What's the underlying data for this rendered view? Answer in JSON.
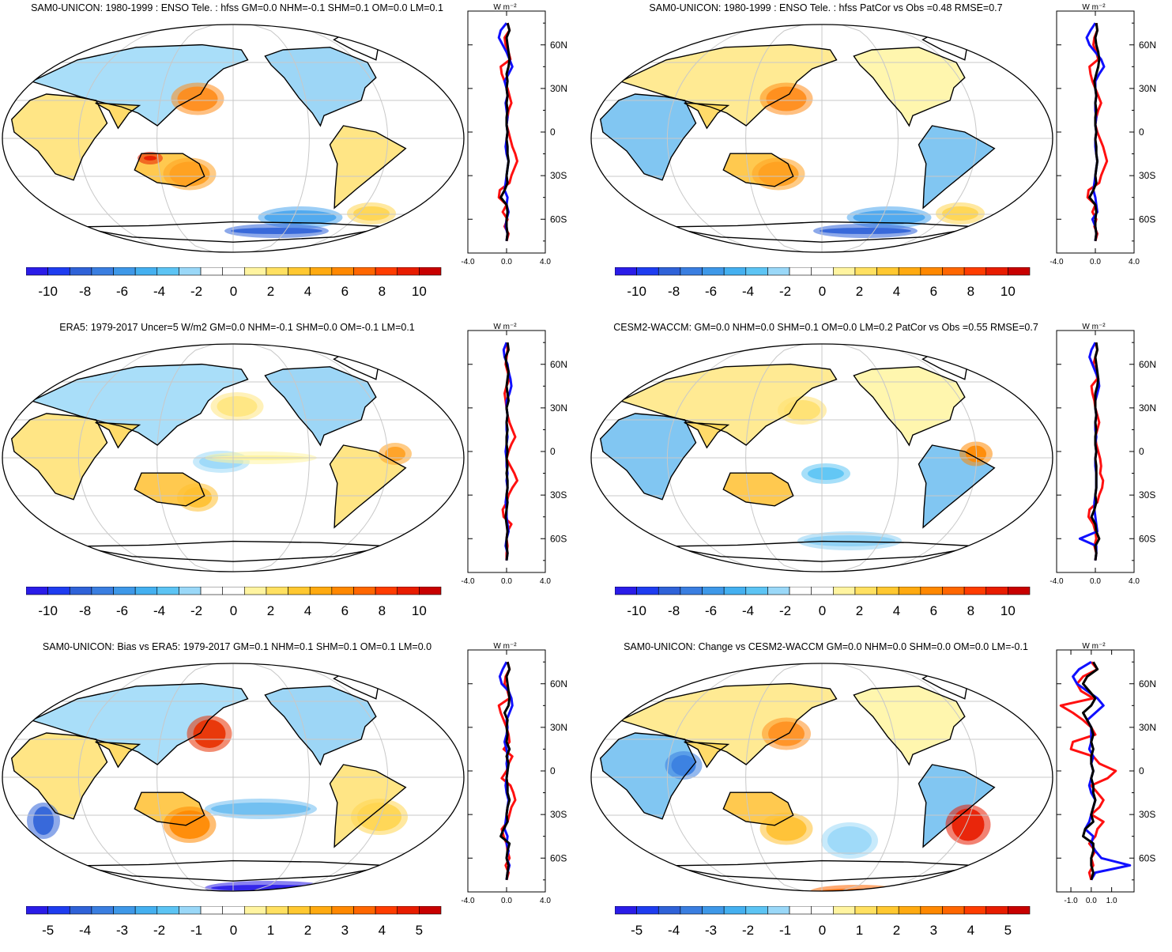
{
  "palette_enso": [
    "#2a1ce8",
    "#1e3cf0",
    "#2f62d8",
    "#3a7ee0",
    "#3e98e8",
    "#44b0f0",
    "#5cc4f4",
    "#9ad8f8",
    "#ffffff",
    "#ffffff",
    "#fff4a0",
    "#ffe060",
    "#ffc830",
    "#ffaa10",
    "#ff8800",
    "#ff6600",
    "#ff3c00",
    "#e81c00",
    "#c80000"
  ],
  "palette_bias": [
    "#2a1ce8",
    "#1e3cf0",
    "#2f62d8",
    "#3a7ee0",
    "#3e98e8",
    "#44b0f0",
    "#5cc4f4",
    "#9ad8f8",
    "#ffffff",
    "#ffffff",
    "#fff4a0",
    "#ffe060",
    "#ffc830",
    "#ffaa10",
    "#ff8800",
    "#ff6600",
    "#ff3c00",
    "#e81c00",
    "#c80000"
  ],
  "colors": {
    "red": "#ff1010",
    "blue": "#1010ff",
    "black": "#000000",
    "grid": "#c8c8c8"
  },
  "lat_labels": [
    "60N",
    "30N",
    "0",
    "30S",
    "60S"
  ],
  "panels": [
    {
      "id": "sam0-enso",
      "title": "SAM0-UNICON: 1980-1999 : ENSO Tele. : hfss GM=0.0 NHM=-0.1 SHM=0.1 OM=0.0 LM=0.1",
      "colorbar_labels": [
        "-10",
        "-8",
        "-6",
        "-4",
        "-2",
        "0",
        "2",
        "4",
        "6",
        "8",
        "10"
      ],
      "palette": "enso",
      "profile_unit": "W m⁻²",
      "profile_xticks": [
        "-4.0",
        "0.0",
        "4.0"
      ],
      "profile_xlim": [
        -4,
        4
      ],
      "profile_series": {
        "red": [
          0.1,
          0.3,
          -0.2,
          -0.1,
          0.2,
          0.4,
          -0.6,
          -0.5,
          -0.2,
          0.1,
          0.3,
          0.5,
          0.2,
          0.1,
          0.0,
          0.2,
          0.4,
          0.6,
          0.9,
          1.1,
          0.8,
          0.5,
          0.3,
          -0.7,
          -0.8,
          0.0,
          -0.4,
          0.1,
          -0.2,
          0.2,
          0.0
        ],
        "blue": [
          0.0,
          -0.6,
          -0.8,
          -0.4,
          0.0,
          0.3,
          0.6,
          0.2,
          -0.2,
          0.0,
          0.1,
          -0.1,
          0.0,
          0.1,
          0.0,
          0.1,
          0.0,
          -0.1,
          0.0,
          0.2,
          0.1,
          0.0,
          -0.1,
          -0.2,
          0.1,
          0.0,
          0.2,
          0.0,
          -0.1,
          0.1,
          0.0
        ],
        "black": [
          0.1,
          0.3,
          0.0,
          0.1,
          0.2,
          0.3,
          0.2,
          0.0,
          0.1,
          0.0,
          0.1,
          0.0,
          0.1,
          0.0,
          0.0,
          0.1,
          0.0,
          0.1,
          0.1,
          0.2,
          0.1,
          0.0,
          0.1,
          -0.2,
          -0.6,
          0.0,
          0.1,
          0.0,
          0.0,
          0.1,
          0.0
        ]
      },
      "emph": [
        [
          250,
          105,
          55,
          35,
          "#ff8c1a"
        ],
        [
          240,
          200,
          55,
          35,
          "#ffa020"
        ],
        [
          380,
          255,
          95,
          22,
          "#4aa6ee"
        ],
        [
          350,
          272,
          120,
          12,
          "#2f62d8"
        ],
        [
          470,
          250,
          50,
          22,
          "#ffd550"
        ],
        [
          190,
          180,
          20,
          10,
          "#e81c00"
        ]
      ]
    },
    {
      "id": "sam0-enso-patcor",
      "title": "SAM0-UNICON: 1980-1999 : ENSO Tele. : hfss PatCor vs Obs =0.48 RMSE=0.7",
      "colorbar_labels": [
        "-10",
        "-8",
        "-6",
        "-4",
        "-2",
        "0",
        "2",
        "4",
        "6",
        "8",
        "10"
      ],
      "palette": "enso",
      "profile_unit": "W m⁻²",
      "profile_xticks": [
        "-4.0",
        "0.0",
        "4.0"
      ],
      "profile_xlim": [
        -4,
        4
      ],
      "profile_series": {
        "red": [
          0.1,
          0.2,
          -0.1,
          -0.2,
          0.1,
          0.3,
          -0.6,
          -0.5,
          -0.3,
          0.0,
          0.3,
          0.6,
          0.3,
          0.1,
          0.0,
          0.2,
          0.5,
          0.8,
          1.0,
          1.2,
          0.9,
          0.6,
          0.4,
          -0.7,
          -0.8,
          0.0,
          -0.3,
          0.1,
          -0.1,
          0.2,
          0.0
        ],
        "blue": [
          0.0,
          -0.5,
          -0.9,
          -0.6,
          0.0,
          0.6,
          0.9,
          0.4,
          0.0,
          0.0,
          0.1,
          0.0,
          0.0,
          0.1,
          0.0,
          0.1,
          0.0,
          0.0,
          0.1,
          0.2,
          0.1,
          0.0,
          -0.1,
          -0.2,
          0.0,
          0.1,
          0.2,
          -0.3,
          0.0,
          0.1,
          0.0
        ],
        "black": [
          0.1,
          0.2,
          0.0,
          0.1,
          0.3,
          0.4,
          0.3,
          0.1,
          -0.1,
          0.0,
          0.1,
          0.0,
          0.1,
          0.0,
          0.0,
          0.1,
          0.0,
          0.1,
          0.1,
          0.2,
          0.1,
          0.0,
          0.1,
          -0.2,
          -0.6,
          0.0,
          0.1,
          0.0,
          0.0,
          0.1,
          0.0
        ]
      },
      "emph": [
        [
          250,
          105,
          55,
          35,
          "#ff8c1a"
        ],
        [
          240,
          200,
          55,
          35,
          "#ffa020"
        ],
        [
          380,
          255,
          95,
          22,
          "#4aa6ee"
        ],
        [
          350,
          272,
          120,
          12,
          "#2f62d8"
        ],
        [
          470,
          250,
          50,
          22,
          "#ffd550"
        ]
      ]
    },
    {
      "id": "era5",
      "title": "ERA5: 1979-2017 Uncer=5 W/m2 GM=0.0 NHM=-0.1 SHM=0.0 OM=-0.1 LM=0.1",
      "colorbar_labels": [
        "-10",
        "-8",
        "-6",
        "-4",
        "-2",
        "0",
        "2",
        "4",
        "6",
        "8",
        "10"
      ],
      "palette": "enso",
      "profile_unit": "W m⁻²",
      "profile_xticks": [
        "-4.0",
        "0.0",
        "4.0"
      ],
      "profile_xlim": [
        -4,
        4
      ],
      "profile_series": {
        "red": [
          0.0,
          0.1,
          0.0,
          -0.1,
          0.1,
          0.3,
          0.0,
          -0.2,
          -0.1,
          0.0,
          0.1,
          0.3,
          0.6,
          0.9,
          0.5,
          0.2,
          0.0,
          0.4,
          0.8,
          1.1,
          0.6,
          0.2,
          0.0,
          -0.4,
          -0.3,
          0.5,
          0.1,
          0.0,
          0.1,
          0.0,
          0.0
        ],
        "blue": [
          0.0,
          -0.3,
          -0.2,
          0.1,
          0.2,
          0.4,
          0.5,
          0.3,
          0.0,
          0.0,
          0.1,
          0.0,
          0.0,
          0.1,
          0.0,
          -0.1,
          0.0,
          0.0,
          0.1,
          0.0,
          0.1,
          0.0,
          -0.1,
          0.0,
          0.0,
          0.1,
          0.2,
          0.0,
          -0.1,
          0.1,
          0.0
        ],
        "black": [
          0.1,
          0.2,
          -0.1,
          0.0,
          0.2,
          0.1,
          0.0,
          0.1,
          0.2,
          0.0,
          0.1,
          0.0,
          0.1,
          0.0,
          0.0,
          0.1,
          0.0,
          0.1,
          0.0,
          0.1,
          0.1,
          0.0,
          0.1,
          0.0,
          -0.1,
          0.0,
          0.1,
          0.0,
          0.0,
          0.1,
          0.0
        ]
      },
      "emph": [
        [
          300,
          90,
          55,
          30,
          "#ffe680"
        ],
        [
          280,
          160,
          60,
          22,
          "#9ad8f8"
        ],
        [
          330,
          155,
          130,
          10,
          "#fff4a0"
        ],
        [
          500,
          150,
          30,
          22,
          "#ffa020"
        ],
        [
          250,
          205,
          40,
          30,
          "#ffc030"
        ]
      ]
    },
    {
      "id": "cesm2",
      "title": "CESM2-WACCM: GM=0.0 NHM=0.0 SHM=0.1 OM=0.0 LM=0.2 PatCor vs Obs =0.55 RMSE=0.7",
      "colorbar_labels": [
        "-10",
        "-8",
        "-6",
        "-4",
        "-2",
        "0",
        "2",
        "4",
        "6",
        "8",
        "10"
      ],
      "palette": "enso",
      "profile_unit": "W m⁻²",
      "profile_xticks": [
        "-4.0",
        "0.0",
        "4.0"
      ],
      "profile_xlim": [
        -4,
        4
      ],
      "profile_series": {
        "red": [
          0.0,
          0.2,
          0.0,
          -0.2,
          0.1,
          0.2,
          -0.4,
          -0.3,
          -0.1,
          0.0,
          0.2,
          0.4,
          0.2,
          0.0,
          0.1,
          0.3,
          0.5,
          0.6,
          0.5,
          0.8,
          0.7,
          0.4,
          0.2,
          -0.6,
          -0.7,
          -0.2,
          0.0,
          0.1,
          -0.1,
          0.1,
          0.0
        ],
        "blue": [
          0.0,
          -0.4,
          -0.6,
          -0.3,
          0.0,
          0.3,
          0.4,
          0.2,
          0.0,
          0.0,
          0.1,
          0.0,
          0.0,
          0.1,
          0.0,
          0.1,
          0.0,
          0.0,
          0.1,
          0.1,
          0.1,
          0.0,
          -0.1,
          -0.1,
          0.0,
          0.1,
          0.2,
          -1.6,
          0.1,
          0.1,
          0.0
        ],
        "black": [
          0.1,
          0.2,
          0.0,
          0.1,
          0.2,
          0.3,
          0.2,
          0.0,
          0.0,
          0.0,
          0.1,
          0.0,
          0.1,
          0.0,
          0.0,
          0.1,
          0.0,
          0.1,
          0.1,
          0.1,
          0.1,
          0.0,
          0.1,
          -0.1,
          -0.4,
          0.0,
          0.1,
          0.4,
          0.0,
          0.1,
          0.0
        ]
      },
      "emph": [
        [
          270,
          95,
          50,
          30,
          "#ffe070"
        ],
        [
          490,
          150,
          30,
          25,
          "#ff8800"
        ],
        [
          330,
          260,
          120,
          18,
          "#8ccff4"
        ],
        [
          300,
          175,
          50,
          20,
          "#5cc4f4"
        ]
      ]
    },
    {
      "id": "bias",
      "title": "SAM0-UNICON: Bias vs ERA5: 1979-2017 GM=0.1 NHM=0.1 SHM=0.1 OM=0.1 LM=0.0",
      "colorbar_labels": [
        "-5",
        "-4",
        "-3",
        "-2",
        "-1",
        "0",
        "1",
        "2",
        "3",
        "4",
        "5"
      ],
      "palette": "bias",
      "profile_unit": "W m⁻²",
      "profile_xticks": [
        "-4.0",
        "0.0",
        "4.0"
      ],
      "profile_xlim": [
        -4,
        4
      ],
      "profile_series": {
        "red": [
          0.1,
          0.3,
          -0.1,
          -0.2,
          0.1,
          0.3,
          -0.8,
          -0.6,
          -0.3,
          0.0,
          0.2,
          0.3,
          -0.3,
          0.6,
          0.2,
          0.0,
          -0.5,
          0.4,
          0.7,
          0.9,
          0.5,
          0.3,
          0.1,
          -0.5,
          -0.3,
          0.0,
          0.1,
          0.3,
          -0.1,
          0.2,
          0.0
        ],
        "blue": [
          0.0,
          -0.4,
          -0.7,
          -0.5,
          0.2,
          0.5,
          0.6,
          0.3,
          0.0,
          0.1,
          0.0,
          -0.2,
          0.0,
          0.1,
          0.0,
          0.1,
          0.0,
          -0.1,
          0.0,
          0.2,
          0.1,
          0.0,
          -0.1,
          -0.2,
          0.1,
          0.0,
          0.2,
          0.0,
          0.3,
          0.1,
          0.0
        ],
        "black": [
          0.1,
          0.3,
          0.0,
          0.1,
          0.2,
          0.3,
          0.2,
          -0.2,
          0.1,
          0.0,
          0.1,
          0.0,
          0.3,
          0.0,
          0.2,
          0.1,
          0.0,
          0.1,
          0.1,
          0.3,
          0.1,
          0.0,
          0.1,
          -0.3,
          -0.6,
          0.3,
          0.1,
          0.0,
          0.2,
          0.1,
          0.0
        ]
      },
      "emph": [
        [
          265,
          100,
          45,
          40,
          "#e83000"
        ],
        [
          330,
          195,
          130,
          20,
          "#6bbcf0"
        ],
        [
          340,
          295,
          150,
          12,
          "#2a1ce8"
        ],
        [
          240,
          215,
          55,
          40,
          "#ff8800"
        ],
        [
          480,
          205,
          60,
          40,
          "#ffd550"
        ],
        [
          55,
          210,
          30,
          40,
          "#2f62d8"
        ]
      ]
    },
    {
      "id": "change",
      "title": "SAM0-UNICON: Change vs CESM2-WACCM GM=0.0 NHM=0.0 SHM=0.0 OM=0.0 LM=-0.1",
      "colorbar_labels": [
        "-5",
        "-4",
        "-3",
        "-2",
        "-1",
        "0",
        "1",
        "2",
        "3",
        "4",
        "5"
      ],
      "palette": "bias",
      "profile_unit": "W m⁻²",
      "profile_xticks": [
        "-1.0",
        "0.0",
        "1.0"
      ],
      "profile_xlim": [
        -1.7,
        2.1
      ],
      "profile_series": {
        "red": [
          0.0,
          0.3,
          -0.4,
          -0.7,
          -0.5,
          0.1,
          -1.5,
          -0.9,
          -0.4,
          0.0,
          0.2,
          -0.9,
          -1.0,
          0.1,
          0.4,
          1.2,
          0.8,
          0.0,
          0.3,
          0.6,
          0.4,
          0.0,
          0.6,
          0.3,
          0.2,
          -0.1,
          0.2,
          0.0,
          0.1,
          -0.1,
          0.0
        ],
        "blue": [
          0.0,
          -0.6,
          -0.9,
          -0.7,
          -0.2,
          0.3,
          0.6,
          0.2,
          -0.2,
          0.0,
          0.0,
          0.0,
          -0.1,
          0.1,
          0.0,
          0.1,
          0.0,
          -0.1,
          0.0,
          0.2,
          0.1,
          0.0,
          -0.1,
          -0.3,
          0.1,
          0.0,
          0.2,
          0.5,
          1.9,
          0.2,
          0.0
        ],
        "black": [
          0.1,
          0.3,
          -0.2,
          -0.4,
          -0.1,
          0.2,
          0.0,
          -0.4,
          -0.2,
          0.0,
          0.1,
          0.0,
          0.1,
          0.0,
          0.0,
          0.1,
          0.0,
          0.1,
          0.1,
          0.2,
          0.1,
          0.0,
          0.1,
          -0.3,
          -0.4,
          0.1,
          0.1,
          0.0,
          0.0,
          0.1,
          0.0
        ]
      },
      "emph": [
        [
          250,
          100,
          50,
          35,
          "#ff9020"
        ],
        [
          480,
          215,
          45,
          45,
          "#e81c00"
        ],
        [
          330,
          235,
          60,
          40,
          "#9ad8f8"
        ],
        [
          340,
          300,
          110,
          12,
          "#ff6600"
        ],
        [
          250,
          220,
          55,
          35,
          "#ffc030"
        ],
        [
          120,
          140,
          35,
          30,
          "#3a7ee0"
        ]
      ]
    }
  ]
}
